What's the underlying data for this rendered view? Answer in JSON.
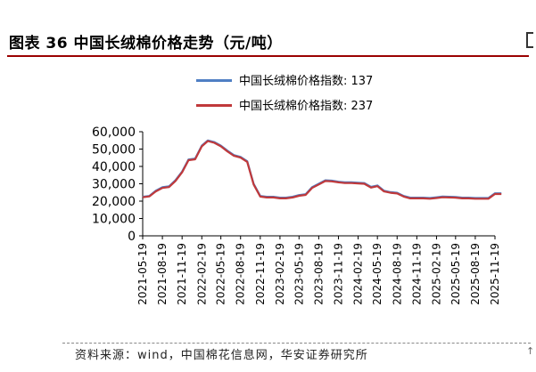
{
  "figure": {
    "title": "图表 36 中国长绒棉价格走势（元/吨）",
    "source": "资料来源：wind，中国棉花信息网，华安证券研究所",
    "edge_glyph": "↑"
  },
  "chart_data": {
    "type": "line",
    "title": "",
    "xlabel": "",
    "ylabel": "",
    "ylim": [
      0,
      60000
    ],
    "yticks": [
      0,
      10000,
      20000,
      30000,
      40000,
      50000,
      60000
    ],
    "ytick_labels": [
      "0",
      "10,000",
      "20,000",
      "30,000",
      "40,000",
      "50,000",
      "60,000"
    ],
    "xticks": [
      "2021-05-19",
      "2021-08-19",
      "2021-11-19",
      "2022-02-19",
      "2022-05-19",
      "2022-08-19",
      "2022-11-19",
      "2023-02-19",
      "2023-05-19",
      "2023-08-19",
      "2023-11-19",
      "2024-02-19",
      "2024-05-19",
      "2024-08-19",
      "2024-11-19",
      "2025-02-19",
      "2025-05-19",
      "2025-08-19",
      "2025-11-19"
    ],
    "grid": false,
    "legend_position": "top",
    "x": [
      "2021-05-19",
      "2021-06-19",
      "2021-07-19",
      "2021-08-19",
      "2021-09-19",
      "2021-10-19",
      "2021-11-19",
      "2021-12-19",
      "2022-01-19",
      "2022-02-19",
      "2022-03-19",
      "2022-04-19",
      "2022-05-19",
      "2022-06-19",
      "2022-07-19",
      "2022-08-19",
      "2022-09-19",
      "2022-10-19",
      "2022-11-19",
      "2022-12-19",
      "2023-01-19",
      "2023-02-19",
      "2023-03-19",
      "2023-04-19",
      "2023-05-19",
      "2023-06-19",
      "2023-07-19",
      "2023-08-19",
      "2023-09-19",
      "2023-10-19",
      "2023-11-19",
      "2023-12-19",
      "2024-01-19",
      "2024-02-19",
      "2024-03-19",
      "2024-04-19",
      "2024-05-19",
      "2024-06-19",
      "2024-07-19",
      "2024-08-19",
      "2024-09-19",
      "2024-10-19",
      "2024-11-19",
      "2024-12-19",
      "2025-01-19",
      "2025-02-19",
      "2025-03-19",
      "2025-04-19",
      "2025-05-19",
      "2025-06-19",
      "2025-07-19",
      "2025-08-19",
      "2025-09-19",
      "2025-10-19",
      "2025-11-19",
      "2025-12-19"
    ],
    "series": [
      {
        "name": "中国长绒棉价格指数: 137",
        "color": "#4f7fc4",
        "values": [
          22500,
          23000,
          26000,
          28000,
          28500,
          32000,
          37000,
          44000,
          44500,
          52000,
          55000,
          54000,
          52000,
          49000,
          46500,
          45500,
          43000,
          30000,
          23000,
          22500,
          22500,
          22000,
          22000,
          22500,
          23500,
          24000,
          28000,
          30000,
          32000,
          31800,
          31200,
          30800,
          30800,
          30600,
          30400,
          28200,
          29000,
          26000,
          25200,
          24800,
          23000,
          22000,
          22000,
          22000,
          21800,
          22200,
          22600,
          22500,
          22400,
          22000,
          22000,
          21800,
          21800,
          21800,
          24500,
          24500
        ]
      },
      {
        "name": "中国长绒棉价格指数: 237",
        "color": "#c0393b",
        "values": [
          22200,
          22700,
          25600,
          27600,
          28100,
          31600,
          36600,
          43600,
          44100,
          51600,
          54600,
          53600,
          51600,
          48600,
          46100,
          45100,
          42600,
          29600,
          22600,
          22100,
          22100,
          21600,
          21600,
          22100,
          23100,
          23600,
          27600,
          29600,
          31600,
          31400,
          30800,
          30400,
          30400,
          30200,
          30000,
          27800,
          28600,
          25600,
          24800,
          24400,
          22600,
          21600,
          21600,
          21600,
          21400,
          21800,
          22200,
          22100,
          22000,
          21600,
          21600,
          21400,
          21400,
          21400,
          24100,
          24100
        ]
      }
    ]
  }
}
